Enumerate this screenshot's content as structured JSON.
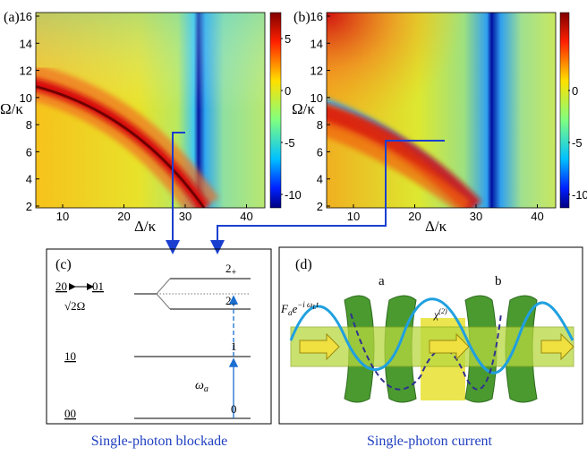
{
  "panels": {
    "a": {
      "label": "(a)",
      "y_axis": "Ω/κ",
      "x_axis": "Δ/κ",
      "yticks": [
        2,
        4,
        6,
        8,
        10,
        12,
        14,
        16
      ],
      "xticks": [
        10,
        20,
        30,
        40
      ],
      "colorbar_ticks": [
        5,
        0,
        -5,
        -10
      ]
    },
    "b": {
      "label": "(b)",
      "y_axis": "Ω/κ",
      "x_axis": "Δ/κ",
      "yticks": [
        2,
        4,
        6,
        8,
        10,
        12,
        14,
        16
      ],
      "xticks": [
        10,
        20,
        30,
        40
      ],
      "colorbar_ticks": [
        0,
        -5,
        -10
      ]
    },
    "c": {
      "label": "(c)",
      "state_20": "20",
      "state_01": "01",
      "coupling": "√2Ω",
      "state_10": "10",
      "state_00": "00",
      "level_2p": {
        "base": "2",
        "sub": "+"
      },
      "level_2m": {
        "base": "2",
        "sub": "−"
      },
      "level_1": "1",
      "level_0": "0",
      "pump": {
        "symbol": "ω",
        "sub": "a"
      },
      "caption": "Single-photon blockade"
    },
    "d": {
      "label": "(d)",
      "cavity_a": "a",
      "cavity_b": "b",
      "drive": {
        "base": "F",
        "sub": "a",
        "exp_base": "e",
        "sup": "−i ω",
        "sup_sub": "L",
        "sup_end": "t"
      },
      "chi": {
        "symbol": "χ",
        "sup": "(2)"
      },
      "caption": "Single-photon current"
    }
  }
}
